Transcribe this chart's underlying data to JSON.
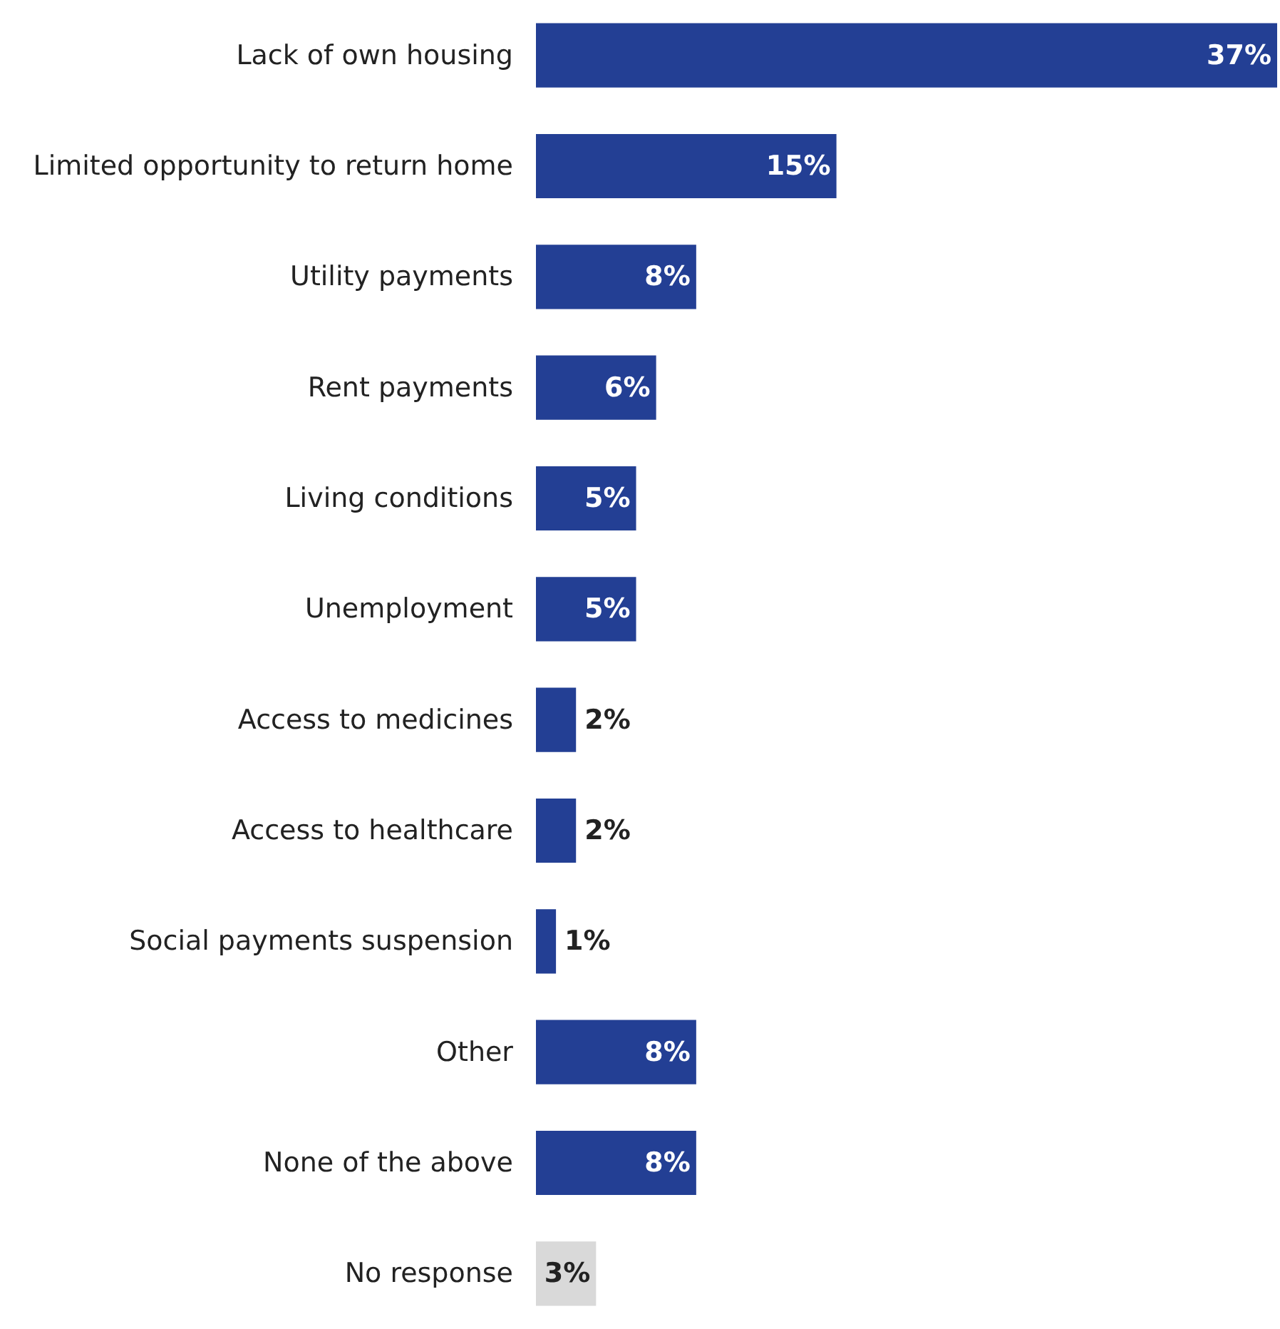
{
  "chart_data": {
    "type": "bar",
    "orientation": "horizontal",
    "categories": [
      "Lack of own housing",
      "Limited opportunity to return home",
      "Utility payments",
      "Rent payments",
      "Living conditions",
      "Unemployment",
      "Access to medicines",
      "Access to healthcare",
      "Social payments suspension",
      "Other",
      "None of the above",
      "No response"
    ],
    "values": [
      37,
      15,
      8,
      6,
      5,
      5,
      2,
      2,
      1,
      8,
      8,
      3
    ],
    "value_labels": [
      "37%",
      "15%",
      "8%",
      "6%",
      "5%",
      "5%",
      "2%",
      "2%",
      "1%",
      "8%",
      "8%",
      "3%"
    ],
    "colors": [
      "#233f94",
      "#233f94",
      "#233f94",
      "#233f94",
      "#233f94",
      "#233f94",
      "#233f94",
      "#233f94",
      "#233f94",
      "#233f94",
      "#233f94",
      "#d9d9d9"
    ]
  }
}
